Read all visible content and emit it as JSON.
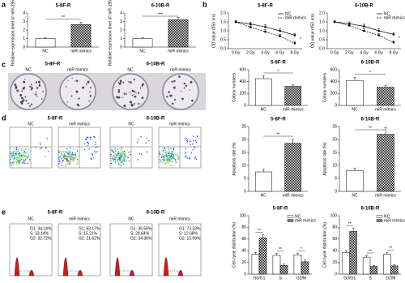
{
  "figure": {
    "panel_labels": [
      "a",
      "b",
      "c",
      "d",
      "e"
    ],
    "colony": {
      "cell_lines": [
        "5-8F-R",
        "6-10B-R"
      ],
      "groups": [
        "NC",
        "miR mimics",
        "NC",
        "miR mimics"
      ]
    },
    "flow": {
      "cell_lines": [
        "5-8F-R",
        "6-10B-R"
      ],
      "groups": [
        "NC",
        "miR mimics",
        "NC",
        "miR mimics"
      ]
    },
    "cell_cycle": {
      "cell_lines": [
        "5-8F-R",
        "6-10B-R"
      ],
      "groups": [
        "NC",
        "miR mimics",
        "NC",
        "miR mimics"
      ],
      "stats": [
        [
          "G1: 34.14%",
          "S: 33.14%",
          "G2: 32.72%"
        ],
        [
          "G1: 63.17%",
          "S: 15.21%",
          "G2: 21.62%"
        ],
        [
          "G1: 36.59%",
          "S: 29.64%",
          "G2: 34.38%"
        ],
        [
          "G1: 73.33%",
          "S: 12.68%",
          "G2: 13.99%"
        ]
      ]
    }
  },
  "chart_data": [
    {
      "type": "bar",
      "title": "5-8F-R",
      "y_label": "Relative expression level of miR-195-3p",
      "categories": [
        "NC",
        "miR mimics"
      ],
      "values": [
        1.0,
        2.65
      ],
      "errors": [
        0.1,
        0.25
      ],
      "colors": [
        "#ffffff",
        "#000000"
      ],
      "fill_styles": [
        "solid",
        "checker"
      ],
      "ylim": [
        0,
        4
      ],
      "yticks": [
        0,
        1,
        2,
        3,
        4
      ],
      "significance": "**"
    },
    {
      "type": "bar",
      "title": "6-10B-R",
      "y_label": "Relative expression level of miR-195-3p",
      "categories": [
        "NC",
        "miR mimics"
      ],
      "values": [
        1.0,
        3.2
      ],
      "errors": [
        0.1,
        0.3
      ],
      "colors": [
        "#ffffff",
        "#000000"
      ],
      "fill_styles": [
        "solid",
        "checker"
      ],
      "ylim": [
        0,
        4
      ],
      "yticks": [
        0,
        1,
        2,
        3,
        4
      ],
      "significance": "***"
    },
    {
      "type": "line",
      "title": "5-8F-R",
      "y_label": "OD value (450 nm)",
      "categories": [
        "0 Gy",
        "2 Gy",
        "4 Gy",
        "6 Gy",
        "8 Gy"
      ],
      "series": [
        {
          "name": "NC",
          "color": "#000000",
          "line_style": "solid",
          "values": [
            1.5,
            1.38,
            1.22,
            1.0,
            0.75
          ],
          "errors": [
            0.08,
            0.1,
            0.12,
            0.12,
            0.1
          ]
        },
        {
          "name": "miR mimics",
          "color": "#000000",
          "line_style": "dashed",
          "values": [
            1.5,
            1.2,
            0.95,
            0.7,
            0.3
          ],
          "errors": [
            0.08,
            0.12,
            0.12,
            0.1,
            0.08
          ]
        }
      ],
      "ylim": [
        0,
        2
      ],
      "yticks": [
        {
          "value": 0,
          "label": "0.0"
        },
        {
          "value": 0.5,
          "label": "0.5"
        },
        {
          "value": 1,
          "label": "1.0"
        },
        {
          "value": 1.5,
          "label": "1.5"
        },
        {
          "value": 2,
          "label": "2.0"
        }
      ],
      "significance": "*"
    },
    {
      "type": "line",
      "title": "6-10B-R",
      "y_label": "OD value (450 nm)",
      "categories": [
        "0 Gy",
        "2 Gy",
        "4 Gy",
        "6 Gy",
        "8 Gy"
      ],
      "series": [
        {
          "name": "NC",
          "color": "#000000",
          "line_style": "solid",
          "values": [
            1.5,
            1.4,
            1.25,
            1.0,
            0.8
          ],
          "errors": [
            0.08,
            0.1,
            0.12,
            0.12,
            0.1
          ]
        },
        {
          "name": "miR mimics",
          "color": "#000000",
          "line_style": "dashed",
          "values": [
            1.5,
            1.3,
            1.0,
            0.75,
            0.35
          ],
          "errors": [
            0.08,
            0.12,
            0.12,
            0.1,
            0.08
          ]
        }
      ],
      "ylim": [
        0,
        2
      ],
      "yticks": [
        {
          "value": 0,
          "label": "0.0"
        },
        {
          "value": 0.5,
          "label": "0.5"
        },
        {
          "value": 1,
          "label": "1.0"
        },
        {
          "value": 1.5,
          "label": "1.5"
        },
        {
          "value": 2,
          "label": "2.0"
        }
      ],
      "significance": "*"
    },
    {
      "type": "bar",
      "title": "5-8F-R",
      "y_label": "Colony numbers",
      "categories": [
        "NC",
        "miR mimics"
      ],
      "values": [
        450,
        320
      ],
      "errors": [
        50,
        30
      ],
      "colors": [
        "#ffffff",
        "#000000"
      ],
      "fill_styles": [
        "solid",
        "checker"
      ],
      "ylim": [
        0,
        600
      ],
      "yticks": [
        0,
        200,
        400,
        600
      ],
      "significance": "*"
    },
    {
      "type": "bar",
      "title": "6-10B-R",
      "y_label": "Colony numbers",
      "categories": [
        "NC",
        "miR mimics"
      ],
      "values": [
        420,
        305
      ],
      "errors": [
        50,
        25
      ],
      "colors": [
        "#ffffff",
        "#000000"
      ],
      "fill_styles": [
        "solid",
        "checker"
      ],
      "ylim": [
        0,
        600
      ],
      "yticks": [
        0,
        200,
        400,
        600
      ],
      "significance": "*"
    },
    {
      "type": "bar",
      "title": "5-8F-R",
      "y_label": "Apoptosis rate (%)",
      "categories": [
        "NC",
        "miR mimics"
      ],
      "values": [
        7.5,
        18.5
      ],
      "errors": [
        1,
        1.5
      ],
      "colors": [
        "#ffffff",
        "#000000"
      ],
      "fill_styles": [
        "solid",
        "checker"
      ],
      "ylim": [
        0,
        25
      ],
      "yticks": [
        0,
        5,
        10,
        15,
        20,
        25
      ],
      "significance": "**"
    },
    {
      "type": "bar",
      "title": "6-10B-R",
      "y_label": "Apoptosis rate (%)",
      "categories": [
        "NC",
        "miR mimics"
      ],
      "values": [
        8,
        22
      ],
      "errors": [
        1,
        2.5
      ],
      "colors": [
        "#ffffff",
        "#000000"
      ],
      "fill_styles": [
        "solid",
        "checker"
      ],
      "ylim": [
        0,
        25
      ],
      "yticks": [
        0,
        5,
        10,
        15,
        20,
        25
      ],
      "significance": "**"
    },
    {
      "type": "bar",
      "title": "5-8F-R",
      "y_label": "Cell cycle distribution (%)",
      "categories": [
        "G0/G1",
        "S",
        "G2/M"
      ],
      "series": [
        {
          "name": "NC",
          "color": "#ffffff",
          "fill_style": "solid",
          "values": [
            34,
            32,
            33
          ],
          "errors": [
            3,
            3,
            3
          ]
        },
        {
          "name": "miR mimics",
          "color": "#000000",
          "fill_style": "checker",
          "values": [
            62,
            15,
            21
          ],
          "errors": [
            5,
            2,
            3
          ]
        }
      ],
      "ylim": [
        0,
        100
      ],
      "yticks": [
        0,
        20,
        40,
        60,
        80,
        100
      ],
      "significance": [
        "**",
        "**",
        "*"
      ]
    },
    {
      "type": "bar",
      "title": "6-10B-R",
      "y_label": "Cell cycle distribution (%)",
      "categories": [
        "G0/G1",
        "S",
        "G2/M"
      ],
      "series": [
        {
          "name": "NC",
          "color": "#ffffff",
          "fill_style": "solid",
          "values": [
            37,
            29,
            34
          ],
          "errors": [
            3,
            3,
            3
          ]
        },
        {
          "name": "miR mimics",
          "color": "#000000",
          "fill_style": "checker",
          "values": [
            73,
            13,
            14
          ],
          "errors": [
            6,
            2,
            2
          ]
        }
      ],
      "ylim": [
        0,
        100
      ],
      "yticks": [
        0,
        20,
        40,
        60,
        80,
        100
      ],
      "significance": [
        "**",
        "**",
        "**"
      ]
    }
  ]
}
